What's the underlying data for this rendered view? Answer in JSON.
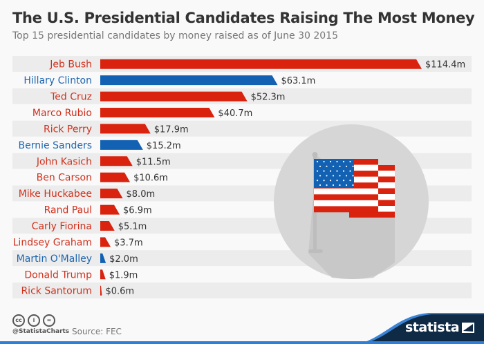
{
  "title": "The U.S. Presidential Candidates Raising The Most Money",
  "subtitle": "Top 15 presidential candidates by money raised as of June 30 2015",
  "colors": {
    "republican": "#d9230f",
    "democrat": "#1261b3",
    "label_republican": "#d0301c",
    "label_democrat": "#1f66b0",
    "row_band": "#ececec"
  },
  "chart_data": {
    "type": "bar",
    "orientation": "horizontal",
    "categories": [
      "Jeb Bush",
      "Hillary Clinton",
      "Ted Cruz",
      "Marco Rubio",
      "Rick Perry",
      "Bernie Sanders",
      "John Kasich",
      "Ben Carson",
      "Mike Huckabee",
      "Rand Paul",
      "Carly Fiorina",
      "Lindsey Graham",
      "Martin O'Malley",
      "Donald Trump",
      "Rick Santorum"
    ],
    "values": [
      114.4,
      63.1,
      52.3,
      40.7,
      17.9,
      15.2,
      11.5,
      10.6,
      8.0,
      6.9,
      5.1,
      3.7,
      2.0,
      1.9,
      0.6
    ],
    "data_labels": [
      "$114.4m",
      "$63.1m",
      "$52.3m",
      "$40.7m",
      "$17.9m",
      "$15.2m",
      "$11.5m",
      "$10.6m",
      "$8.0m",
      "$6.9m",
      "$5.1m",
      "$3.7m",
      "$2.0m",
      "$1.9m",
      "$0.6m"
    ],
    "party": [
      "R",
      "D",
      "R",
      "R",
      "R",
      "D",
      "R",
      "R",
      "R",
      "R",
      "R",
      "R",
      "D",
      "R",
      "R"
    ],
    "unit": "million U.S. dollars",
    "grid": false
  },
  "footer": {
    "handle": "@StatistaCharts",
    "source": "Source: FEC",
    "brand": "statista",
    "license_icons": [
      "cc-icon",
      "attribution-icon",
      "no-derivatives-icon"
    ]
  },
  "illustration": "us-flag-icon"
}
